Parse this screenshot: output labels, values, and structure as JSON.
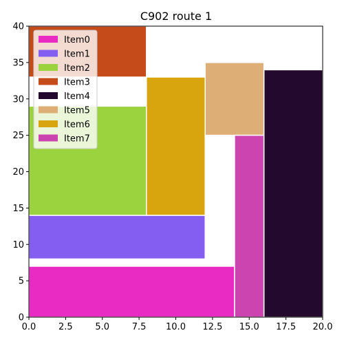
{
  "chart_data": {
    "type": "bar",
    "title": "C902 route 1",
    "xlabel": "",
    "ylabel": "",
    "xlim": [
      0,
      20
    ],
    "ylim": [
      0,
      40
    ],
    "xticks": [
      "0.0",
      "2.5",
      "5.0",
      "7.5",
      "10.0",
      "12.5",
      "15.0",
      "17.5",
      "20.0"
    ],
    "yticks": [
      "0",
      "5",
      "10",
      "15",
      "20",
      "25",
      "30",
      "35",
      "40"
    ],
    "grid": false,
    "legend_position": "top-left",
    "items": [
      {
        "name": "Item0",
        "color": "#E92BC4",
        "x0": 0,
        "x1": 14,
        "y0": 0,
        "y1": 7
      },
      {
        "name": "Item1",
        "color": "#845EF0",
        "x0": 0,
        "x1": 12,
        "y0": 8,
        "y1": 14
      },
      {
        "name": "Item2",
        "color": "#9BD33E",
        "x0": 0,
        "x1": 8,
        "y0": 14,
        "y1": 29
      },
      {
        "name": "Item3",
        "color": "#C54B1A",
        "x0": 0,
        "x1": 8,
        "y0": 33,
        "y1": 40
      },
      {
        "name": "Item4",
        "color": "#22092D",
        "x0": 16,
        "x1": 20,
        "y0": 0,
        "y1": 34
      },
      {
        "name": "Item5",
        "color": "#DDAE76",
        "x0": 12,
        "x1": 16,
        "y0": 25,
        "y1": 35
      },
      {
        "name": "Item6",
        "color": "#D9A50F",
        "x0": 8,
        "x1": 12,
        "y0": 14,
        "y1": 33
      },
      {
        "name": "Item7",
        "color": "#CC44AF",
        "x0": 14,
        "x1": 16,
        "y0": 0,
        "y1": 25
      }
    ]
  }
}
